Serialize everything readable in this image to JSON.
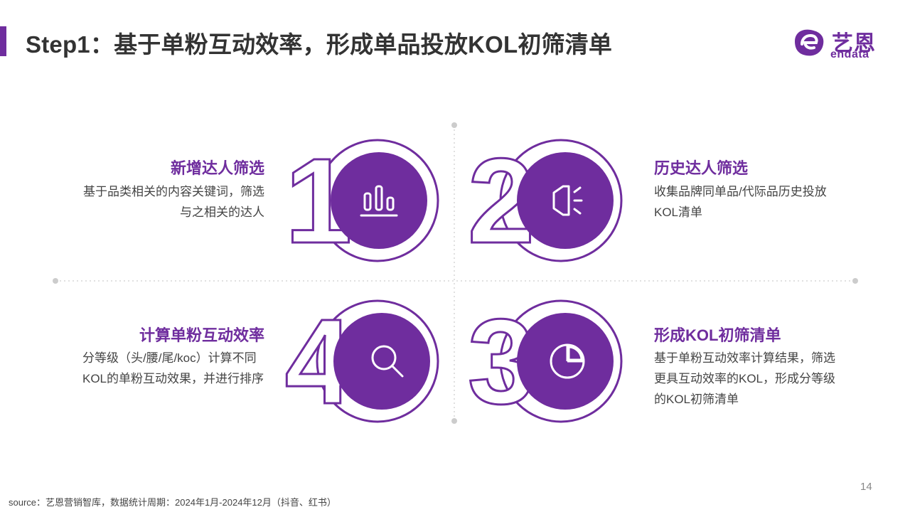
{
  "header": {
    "title": "Step1：基于单粉互动效率，形成单品投放KOL初筛清单",
    "accent_color": "#6f2d9e"
  },
  "logo": {
    "text_cn": "艺恩",
    "text_en": "endata",
    "brand_color": "#6f2d9e"
  },
  "steps": [
    {
      "number": "1",
      "title": "新增达人筛选",
      "description": "基于品类相关的内容关键词，筛选与之相关的达人",
      "icon": "bar-chart-icon"
    },
    {
      "number": "2",
      "title": "历史达人筛选",
      "description": "收集品牌同单品/代际品历史投放KOL清单",
      "icon": "speaker-icon"
    },
    {
      "number": "3",
      "title": "形成KOL初筛清单",
      "description": "基于单粉互动效率计算结果，筛选更具互动效率的KOL，形成分等级的KOL初筛清单",
      "icon": "pie-chart-icon"
    },
    {
      "number": "4",
      "title": "计算单粉互动效率",
      "description": "分等级（头/腰/尾/koc）计算不同KOL的单粉互动效果，并进行排序",
      "icon": "search-icon"
    }
  ],
  "footer": {
    "page_number": "14",
    "source": "source：艺恩营销智库，数据统计周期：2024年1月-2024年12月（抖音、红书）"
  }
}
